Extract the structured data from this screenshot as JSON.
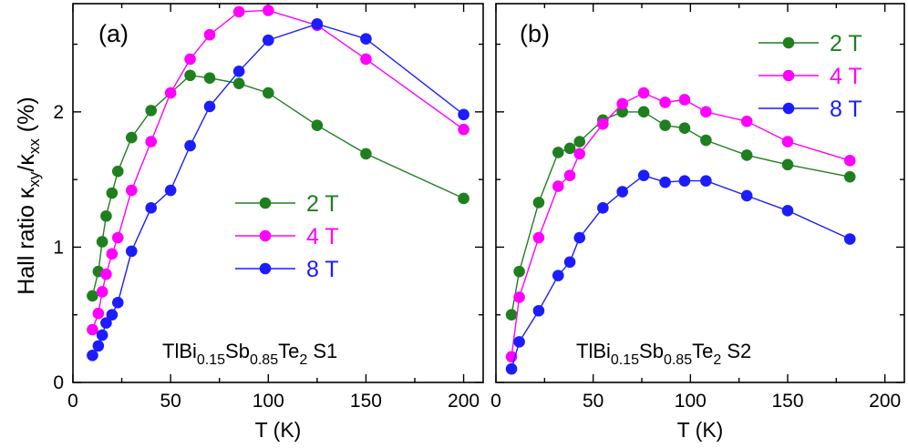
{
  "figure": {
    "ylabel_main": "Hall ratio  ",
    "ylabel_kappa1": "κ",
    "ylabel_sub1": "xy",
    "ylabel_slash": "/κ",
    "ylabel_sub2": "xx",
    "ylabel_unit": " (%)"
  },
  "chart_data": [
    {
      "type": "line",
      "panel_label": "(a)",
      "xlabel": "T (K)",
      "xlim": [
        0,
        210
      ],
      "ylim": [
        0,
        2.8
      ],
      "xticks": [
        0,
        50,
        100,
        150,
        200
      ],
      "yticks": [
        0,
        1,
        2
      ],
      "sample": {
        "formula_base": "TlBi",
        "sub1": "0.15",
        "mid": "Sb",
        "sub2": "0.85",
        "end": "Te",
        "sub3": "2",
        "name": "S1"
      },
      "legend_position": "center",
      "series": [
        {
          "name": "2 T",
          "color": "#1f7f1f",
          "x": [
            10,
            13,
            15,
            17,
            20,
            23,
            30,
            40,
            60,
            70,
            85,
            100,
            125,
            150,
            200
          ],
          "y": [
            0.64,
            0.82,
            1.04,
            1.23,
            1.4,
            1.56,
            1.81,
            2.01,
            2.27,
            2.25,
            2.21,
            2.14,
            1.9,
            1.69,
            1.36
          ]
        },
        {
          "name": "4 T",
          "color": "#ff00ff",
          "x": [
            10,
            13,
            15,
            17,
            20,
            23,
            30,
            40,
            50,
            60,
            70,
            85,
            100,
            125,
            150,
            200
          ],
          "y": [
            0.39,
            0.51,
            0.67,
            0.8,
            0.95,
            1.07,
            1.42,
            1.78,
            2.14,
            2.39,
            2.57,
            2.74,
            2.75,
            2.64,
            2.39,
            1.87
          ]
        },
        {
          "name": "8 T",
          "color": "#1c1cff",
          "x": [
            10,
            13,
            15,
            17,
            20,
            23,
            30,
            40,
            50,
            60,
            70,
            85,
            100,
            125,
            150,
            200
          ],
          "y": [
            0.2,
            0.27,
            0.35,
            0.44,
            0.5,
            0.59,
            0.97,
            1.29,
            1.42,
            1.75,
            2.04,
            2.3,
            2.53,
            2.65,
            2.54,
            1.98
          ]
        }
      ]
    },
    {
      "type": "line",
      "panel_label": "(b)",
      "xlabel": "T (K)",
      "xlim": [
        0,
        210
      ],
      "ylim": [
        0,
        2.8
      ],
      "xticks": [
        0,
        50,
        100,
        150,
        200
      ],
      "yticks": [
        0,
        1,
        2
      ],
      "sample": {
        "formula_base": "TlBi",
        "sub1": "0.15",
        "mid": "Sb",
        "sub2": "0.85",
        "end": "Te",
        "sub3": "2",
        "name": "S2"
      },
      "legend_position": "top-right",
      "series": [
        {
          "name": "2 T",
          "color": "#1f7f1f",
          "x": [
            8,
            12,
            22,
            32,
            38,
            43,
            55,
            65,
            76,
            87,
            97,
            108,
            129,
            150,
            182
          ],
          "y": [
            0.5,
            0.82,
            1.33,
            1.7,
            1.73,
            1.78,
            1.94,
            2.0,
            2.0,
            1.9,
            1.88,
            1.79,
            1.68,
            1.61,
            1.52
          ]
        },
        {
          "name": "4 T",
          "color": "#ff00ff",
          "x": [
            8,
            12,
            22,
            32,
            38,
            43,
            55,
            65,
            76,
            87,
            97,
            108,
            129,
            150,
            182
          ],
          "y": [
            0.19,
            0.63,
            1.07,
            1.45,
            1.53,
            1.69,
            1.91,
            2.06,
            2.14,
            2.07,
            2.09,
            2.0,
            1.93,
            1.78,
            1.64
          ]
        },
        {
          "name": "8 T",
          "color": "#1c1cff",
          "x": [
            8,
            12,
            22,
            32,
            38,
            43,
            55,
            65,
            76,
            87,
            97,
            108,
            129,
            150,
            182
          ],
          "y": [
            0.1,
            0.3,
            0.53,
            0.79,
            0.89,
            1.07,
            1.29,
            1.41,
            1.53,
            1.48,
            1.49,
            1.49,
            1.38,
            1.27,
            1.06
          ]
        }
      ]
    }
  ]
}
